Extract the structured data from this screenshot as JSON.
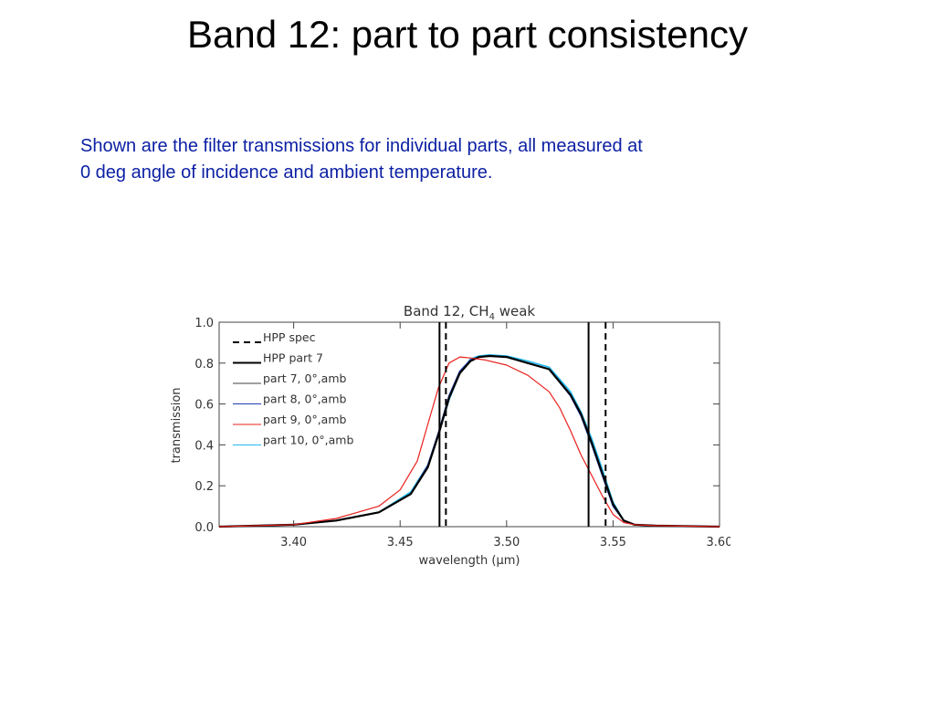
{
  "slide": {
    "title": "Band 12: part to part consistency",
    "description_lines": [
      "Shown are the filter transmissions for individual parts,  all measured at",
      "0 deg angle of incidence and ambient temperature."
    ]
  },
  "chart_data": {
    "type": "line",
    "title": "Band  12, CH",
    "title_sub": "4",
    "title_suffix": " weak",
    "xlabel": "wavelength (μm)",
    "ylabel": "transmission",
    "xlim": [
      3.365,
      3.6
    ],
    "ylim": [
      0.0,
      1.0
    ],
    "xticks": [
      3.4,
      3.45,
      3.5,
      3.55,
      3.6
    ],
    "xtick_labels": [
      "3.40",
      "3.45",
      "3.50",
      "3.55",
      "3.60"
    ],
    "yticks": [
      0.0,
      0.2,
      0.4,
      0.6,
      0.8,
      1.0
    ],
    "ytick_labels": [
      "0.0",
      "0.2",
      "0.4",
      "0.6",
      "0.8",
      "1.0"
    ],
    "grid": false,
    "legend_position": "top-left",
    "vlines": [
      {
        "name": "HPP spec",
        "x": 3.4715,
        "style": "dashed",
        "color": "#000000"
      },
      {
        "name": "HPP spec",
        "x": 3.5465,
        "style": "dashed",
        "color": "#000000"
      },
      {
        "name": "HPP part  7",
        "x": 3.4685,
        "style": "solid",
        "color": "#000000"
      },
      {
        "name": "HPP part  7",
        "x": 3.5385,
        "style": "solid",
        "color": "#000000"
      }
    ],
    "legend": [
      {
        "label": "HPP  spec",
        "color": "#000000",
        "style": "dashed",
        "width": 2
      },
      {
        "label": "HPP  part  7",
        "color": "#000000",
        "style": "solid",
        "width": 2
      },
      {
        "label": "part  7,  0°,amb",
        "color": "#000000",
        "style": "solid",
        "width": 0.8
      },
      {
        "label": "part  8,  0°,amb",
        "color": "#1f3fb0",
        "style": "solid",
        "width": 1
      },
      {
        "label": "part  9,  0°,amb",
        "color": "#e8201c",
        "style": "solid",
        "width": 1
      },
      {
        "label": "part  10,  0°,amb",
        "color": "#22b8ee",
        "style": "solid",
        "width": 1
      }
    ],
    "series": [
      {
        "name": "part  10,  0°,amb",
        "color": "#22b8ee",
        "width": 1.6,
        "x": [
          3.365,
          3.4,
          3.42,
          3.44,
          3.455,
          3.463,
          3.468,
          3.473,
          3.478,
          3.483,
          3.487,
          3.492,
          3.5,
          3.51,
          3.52,
          3.53,
          3.535,
          3.54,
          3.545,
          3.55,
          3.555,
          3.56,
          3.57,
          3.6
        ],
        "y": [
          0.0,
          0.01,
          0.03,
          0.07,
          0.17,
          0.3,
          0.45,
          0.62,
          0.75,
          0.82,
          0.835,
          0.84,
          0.835,
          0.81,
          0.78,
          0.66,
          0.56,
          0.43,
          0.28,
          0.12,
          0.03,
          0.01,
          0.005,
          0.0
        ]
      },
      {
        "name": "part  8,  0°,amb",
        "color": "#1f3fb0",
        "width": 1.6,
        "x": [
          3.365,
          3.4,
          3.42,
          3.44,
          3.455,
          3.463,
          3.468,
          3.473,
          3.478,
          3.483,
          3.487,
          3.492,
          3.5,
          3.51,
          3.52,
          3.53,
          3.535,
          3.54,
          3.545,
          3.55,
          3.555,
          3.56,
          3.57,
          3.6
        ],
        "y": [
          0.0,
          0.01,
          0.03,
          0.07,
          0.16,
          0.3,
          0.46,
          0.64,
          0.76,
          0.815,
          0.83,
          0.835,
          0.83,
          0.8,
          0.77,
          0.64,
          0.54,
          0.4,
          0.25,
          0.1,
          0.03,
          0.01,
          0.005,
          0.0
        ]
      },
      {
        "name": "HPP  part  7",
        "color": "#000000",
        "width": 2.2,
        "x": [
          3.365,
          3.4,
          3.42,
          3.44,
          3.455,
          3.463,
          3.468,
          3.473,
          3.478,
          3.483,
          3.487,
          3.492,
          3.5,
          3.51,
          3.52,
          3.53,
          3.535,
          3.54,
          3.545,
          3.55,
          3.555,
          3.56,
          3.57,
          3.6
        ],
        "y": [
          0.0,
          0.01,
          0.03,
          0.07,
          0.16,
          0.29,
          0.45,
          0.63,
          0.75,
          0.81,
          0.83,
          0.835,
          0.83,
          0.8,
          0.77,
          0.645,
          0.55,
          0.41,
          0.26,
          0.11,
          0.03,
          0.01,
          0.005,
          0.0
        ]
      },
      {
        "name": "part  9,  0°,amb",
        "color": "#e8201c",
        "width": 1.2,
        "x": [
          3.365,
          3.4,
          3.42,
          3.44,
          3.45,
          3.458,
          3.463,
          3.468,
          3.473,
          3.478,
          3.483,
          3.49,
          3.5,
          3.51,
          3.52,
          3.525,
          3.53,
          3.535,
          3.54,
          3.545,
          3.55,
          3.555,
          3.56,
          3.57,
          3.6
        ],
        "y": [
          0.0,
          0.01,
          0.04,
          0.1,
          0.18,
          0.32,
          0.5,
          0.68,
          0.8,
          0.83,
          0.825,
          0.815,
          0.79,
          0.74,
          0.66,
          0.58,
          0.47,
          0.35,
          0.25,
          0.15,
          0.06,
          0.02,
          0.01,
          0.005,
          0.0
        ]
      }
    ]
  }
}
